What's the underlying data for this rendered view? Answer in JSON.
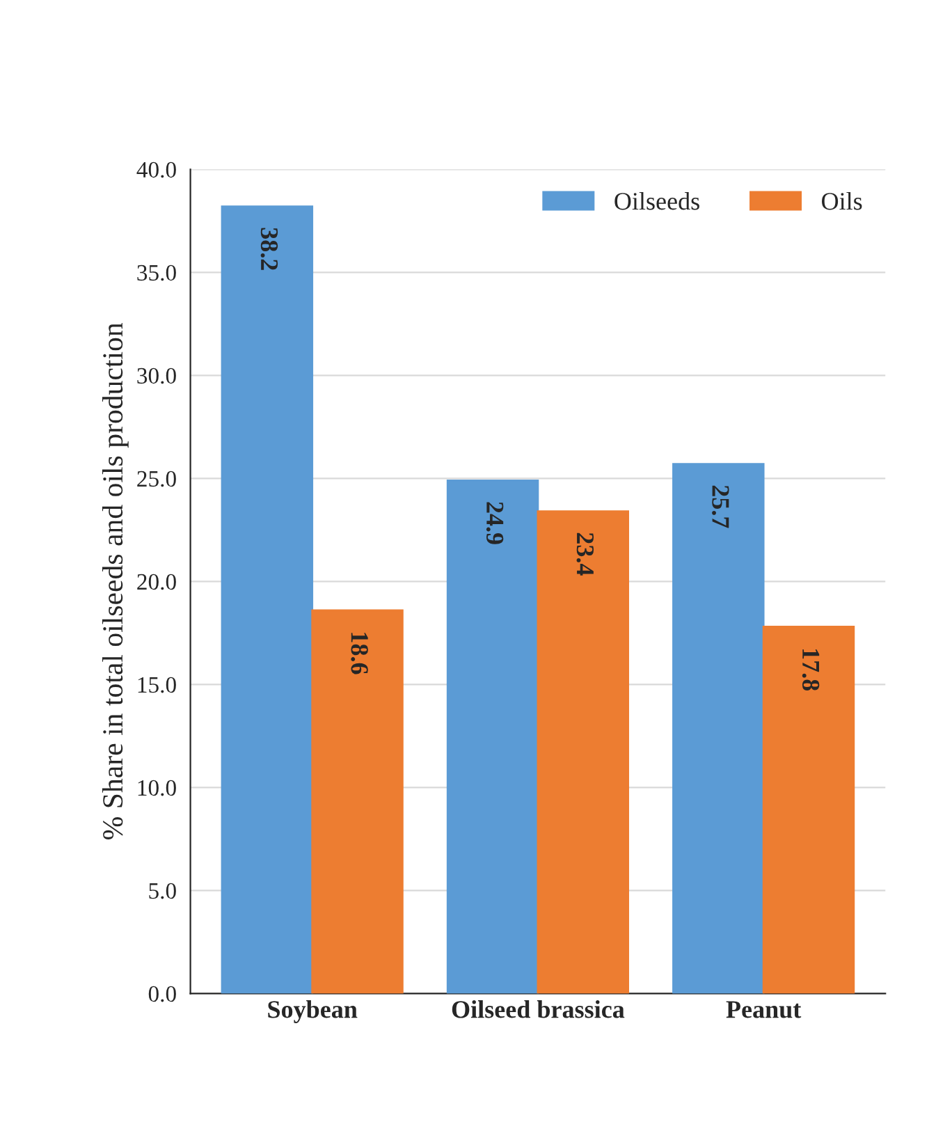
{
  "chart_data": {
    "type": "bar",
    "ylabel": "% Share in total oilseeds and oils production",
    "categories": [
      "Soybean",
      "Oilseed brassica",
      "Peanut"
    ],
    "series": [
      {
        "name": "Oilseeds",
        "color": "#5b9bd5",
        "values": [
          38.2,
          24.9,
          25.7
        ]
      },
      {
        "name": "Oils",
        "color": "#ed7d31",
        "values": [
          18.6,
          23.4,
          17.8
        ]
      }
    ],
    "ylim": [
      0,
      40
    ],
    "yticks": [
      {
        "value": 0,
        "label": "0.0"
      },
      {
        "value": 5,
        "label": "5.0"
      },
      {
        "value": 10,
        "label": "10.0"
      },
      {
        "value": 15,
        "label": "15.0"
      },
      {
        "value": 20,
        "label": "20.0"
      },
      {
        "value": 25,
        "label": "25.0"
      },
      {
        "value": 30,
        "label": "30.0"
      },
      {
        "value": 35,
        "label": "35.0"
      },
      {
        "value": 40,
        "label": "40.0"
      }
    ],
    "grid": "y",
    "legend": "top right",
    "data_labels": true
  }
}
